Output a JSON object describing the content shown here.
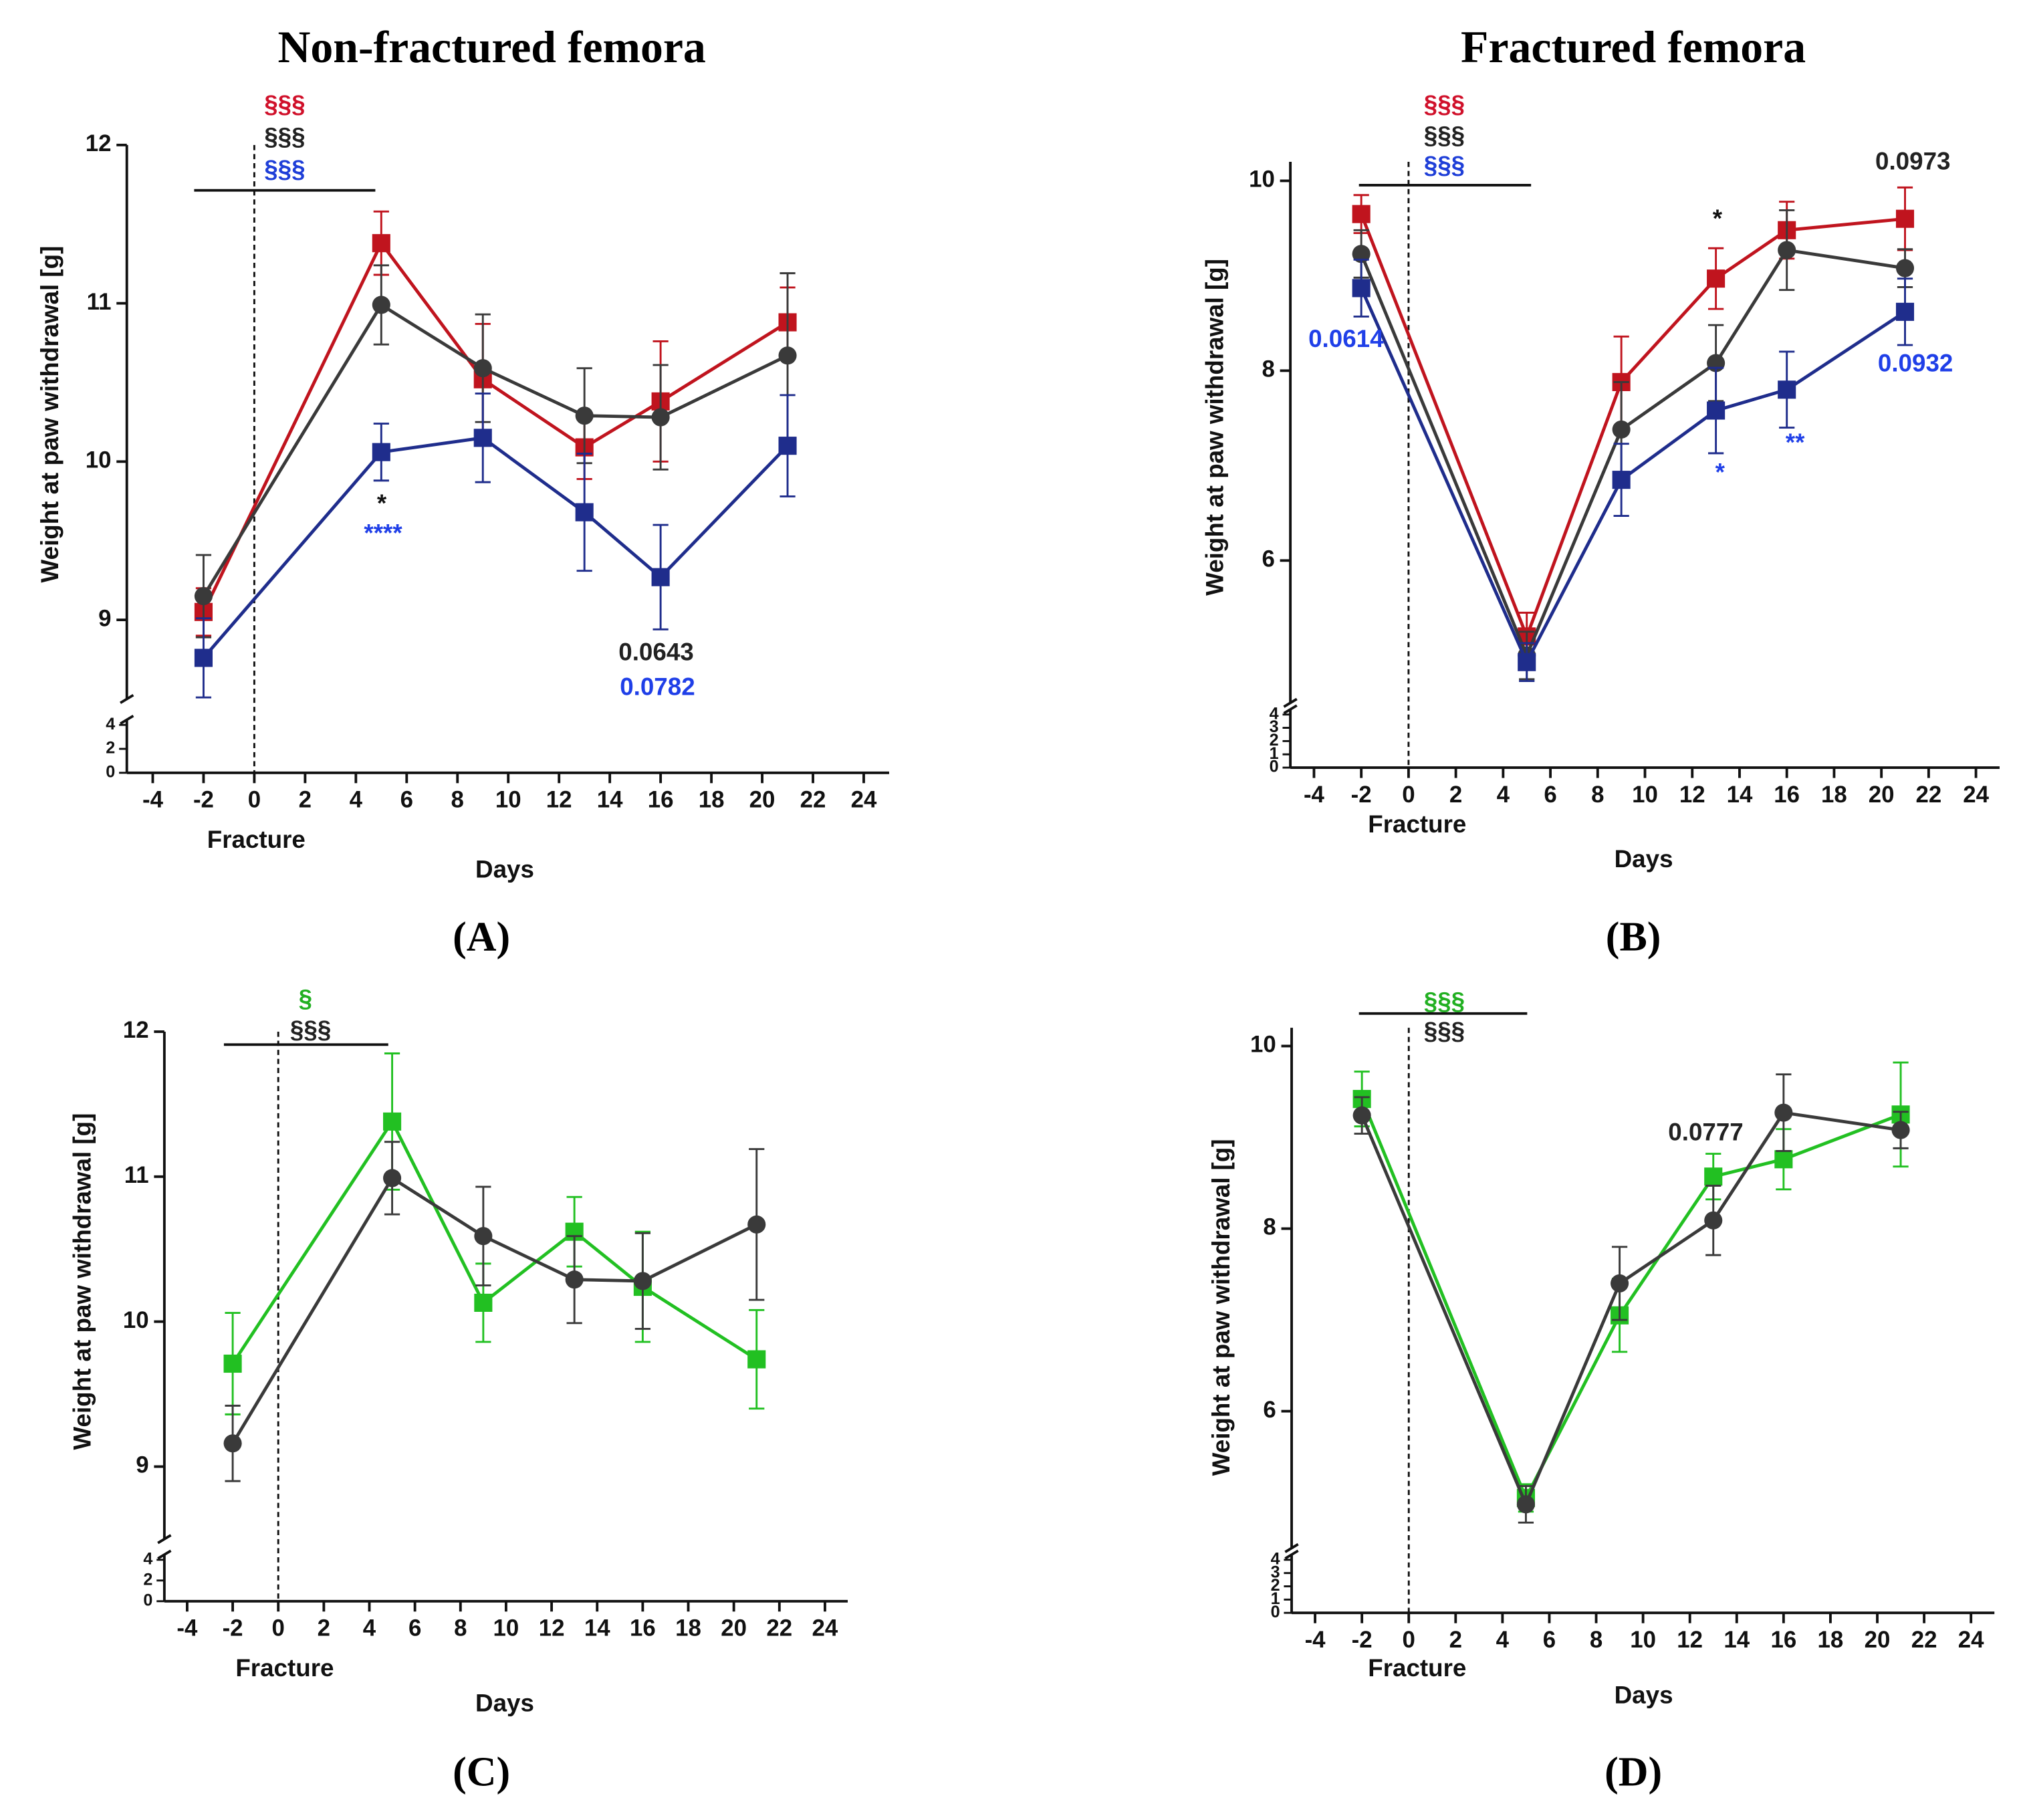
{
  "chart_data": [
    {
      "type": "line",
      "title": "Non-fractured femora",
      "panel_label": "(A)",
      "xlabel": "Days",
      "ylabel": "Weight at paw withdrawal [g]",
      "x_marker_label": "Fracture",
      "x": [
        -2,
        5,
        9,
        13,
        16,
        21
      ],
      "xlim": [
        -5,
        25
      ],
      "xticks": [
        -4,
        -2,
        0,
        2,
        4,
        6,
        8,
        10,
        12,
        14,
        16,
        18,
        20,
        22,
        24
      ],
      "ylim": [
        8.5,
        12
      ],
      "yticks": [
        9,
        10,
        11,
        12
      ],
      "ylim_lower": [
        0,
        4
      ],
      "yticks_lower": [
        0,
        2,
        4
      ],
      "series": [
        {
          "color": "#c0141e",
          "marker": "square",
          "values": [
            9.05,
            11.38,
            10.52,
            10.09,
            10.38,
            10.88
          ],
          "errors": [
            0.15,
            0.2,
            0.35,
            0.2,
            0.38,
            0.22
          ]
        },
        {
          "color": "#3a3a3a",
          "marker": "circle",
          "values": [
            9.15,
            10.99,
            10.59,
            10.29,
            10.28,
            10.67
          ],
          "errors": [
            0.26,
            0.25,
            0.34,
            0.3,
            0.33,
            0.52
          ]
        },
        {
          "color": "#1f2d8c",
          "marker": "square",
          "values": [
            8.76,
            10.06,
            10.15,
            9.68,
            9.27,
            10.1
          ],
          "errors": [
            0.25,
            0.18,
            0.28,
            0.37,
            0.33,
            0.32
          ]
        }
      ],
      "annotations": [
        {
          "text": "§§§",
          "color": "#d0102a"
        },
        {
          "text": "§§§",
          "color": "#222222"
        },
        {
          "text": "§§§",
          "color": "#1f3fd8"
        },
        {
          "text": "*",
          "color": "#111111"
        },
        {
          "text": "****",
          "color": "#1f3fe8"
        },
        {
          "text": "0.0643",
          "color": "#222222"
        },
        {
          "text": "0.0782",
          "color": "#1f3fe8"
        }
      ]
    },
    {
      "type": "line",
      "title": "Fractured femora",
      "panel_label": "(B)",
      "xlabel": "Days",
      "ylabel": "Weight at paw withdrawal [g]",
      "x_marker_label": "Fracture",
      "x": [
        -2,
        5,
        9,
        13,
        16,
        21
      ],
      "xlim": [
        -5,
        25
      ],
      "xticks": [
        -4,
        -2,
        0,
        2,
        4,
        6,
        8,
        10,
        12,
        14,
        16,
        18,
        20,
        22,
        24
      ],
      "ylim": [
        4.5,
        10.2
      ],
      "yticks": [
        6,
        8,
        10
      ],
      "ylim_lower": [
        0,
        4
      ],
      "yticks_lower": [
        0,
        1,
        2,
        3,
        4
      ],
      "series": [
        {
          "color": "#c0141e",
          "marker": "square",
          "values": [
            9.65,
            5.2,
            7.88,
            8.97,
            9.48,
            9.6
          ],
          "errors": [
            0.2,
            0.25,
            0.48,
            0.32,
            0.3,
            0.33
          ]
        },
        {
          "color": "#3a3a3a",
          "marker": "circle",
          "values": [
            9.23,
            5.0,
            7.38,
            8.08,
            9.27,
            9.08
          ],
          "errors": [
            0.25,
            0.25,
            0.5,
            0.4,
            0.42,
            0.2
          ]
        },
        {
          "color": "#1f2d8c",
          "marker": "square",
          "values": [
            8.87,
            4.93,
            6.85,
            7.58,
            7.8,
            8.62
          ],
          "errors": [
            0.3,
            0.2,
            0.38,
            0.45,
            0.4,
            0.35
          ]
        }
      ],
      "annotations": [
        {
          "text": "§§§",
          "color": "#d0102a"
        },
        {
          "text": "§§§",
          "color": "#222222"
        },
        {
          "text": "§§§",
          "color": "#1f3fd8"
        },
        {
          "text": "0.0614",
          "color": "#1f3fe8"
        },
        {
          "text": "*",
          "color": "#111111"
        },
        {
          "text": "*",
          "color": "#1f3fe8"
        },
        {
          "text": "**",
          "color": "#1f3fe8"
        },
        {
          "text": "0.0973",
          "color": "#222222"
        },
        {
          "text": "0.0932",
          "color": "#1f3fe8"
        }
      ]
    },
    {
      "type": "line",
      "panel_label": "(C)",
      "xlabel": "Days",
      "ylabel": "Weight at paw withdrawal [g]",
      "x_marker_label": "Fracture",
      "x": [
        -2,
        5,
        9,
        13,
        16,
        21
      ],
      "xlim": [
        -5,
        25
      ],
      "xticks": [
        -4,
        -2,
        0,
        2,
        4,
        6,
        8,
        10,
        12,
        14,
        16,
        18,
        20,
        22,
        24
      ],
      "ylim": [
        8.5,
        12
      ],
      "yticks": [
        9,
        10,
        11,
        12
      ],
      "ylim_lower": [
        0,
        4
      ],
      "yticks_lower": [
        0,
        2,
        4
      ],
      "series": [
        {
          "color": "#22c022",
          "marker": "square",
          "values": [
            9.71,
            11.38,
            10.13,
            10.62,
            10.24,
            9.74
          ],
          "errors": [
            0.35,
            0.47,
            0.27,
            0.24,
            0.38,
            0.34
          ]
        },
        {
          "color": "#3a3a3a",
          "marker": "circle",
          "values": [
            9.16,
            10.99,
            10.59,
            10.29,
            10.28,
            10.67
          ],
          "errors": [
            0.26,
            0.25,
            0.34,
            0.3,
            0.33,
            0.52
          ]
        }
      ],
      "annotations": [
        {
          "text": "§",
          "color": "#22b022"
        },
        {
          "text": "§§§",
          "color": "#222222"
        }
      ]
    },
    {
      "type": "line",
      "panel_label": "(D)",
      "xlabel": "Days",
      "ylabel": "Weight at paw withdrawal [g]",
      "x_marker_label": "Fracture",
      "x": [
        -2,
        5,
        9,
        13,
        16,
        21
      ],
      "xlim": [
        -5,
        25
      ],
      "xticks": [
        -4,
        -2,
        0,
        2,
        4,
        6,
        8,
        10,
        12,
        14,
        16,
        18,
        20,
        22,
        24
      ],
      "ylim": [
        4.5,
        10.2
      ],
      "yticks": [
        6,
        8,
        10
      ],
      "ylim_lower": [
        0,
        4
      ],
      "yticks_lower": [
        0,
        1,
        2,
        3,
        4
      ],
      "series": [
        {
          "color": "#22c022",
          "marker": "square",
          "values": [
            9.42,
            5.05,
            7.05,
            8.57,
            8.76,
            9.25
          ],
          "errors": [
            0.3,
            0.15,
            0.4,
            0.25,
            0.33,
            0.57
          ]
        },
        {
          "color": "#3a3a3a",
          "marker": "circle",
          "values": [
            9.24,
            4.98,
            7.4,
            8.09,
            9.27,
            9.08
          ],
          "errors": [
            0.2,
            0.2,
            0.4,
            0.38,
            0.42,
            0.2
          ]
        }
      ],
      "annotations": [
        {
          "text": "§§§",
          "color": "#22b022"
        },
        {
          "text": "§§§",
          "color": "#222222"
        },
        {
          "text": "0.0777",
          "color": "#222222"
        }
      ]
    }
  ]
}
